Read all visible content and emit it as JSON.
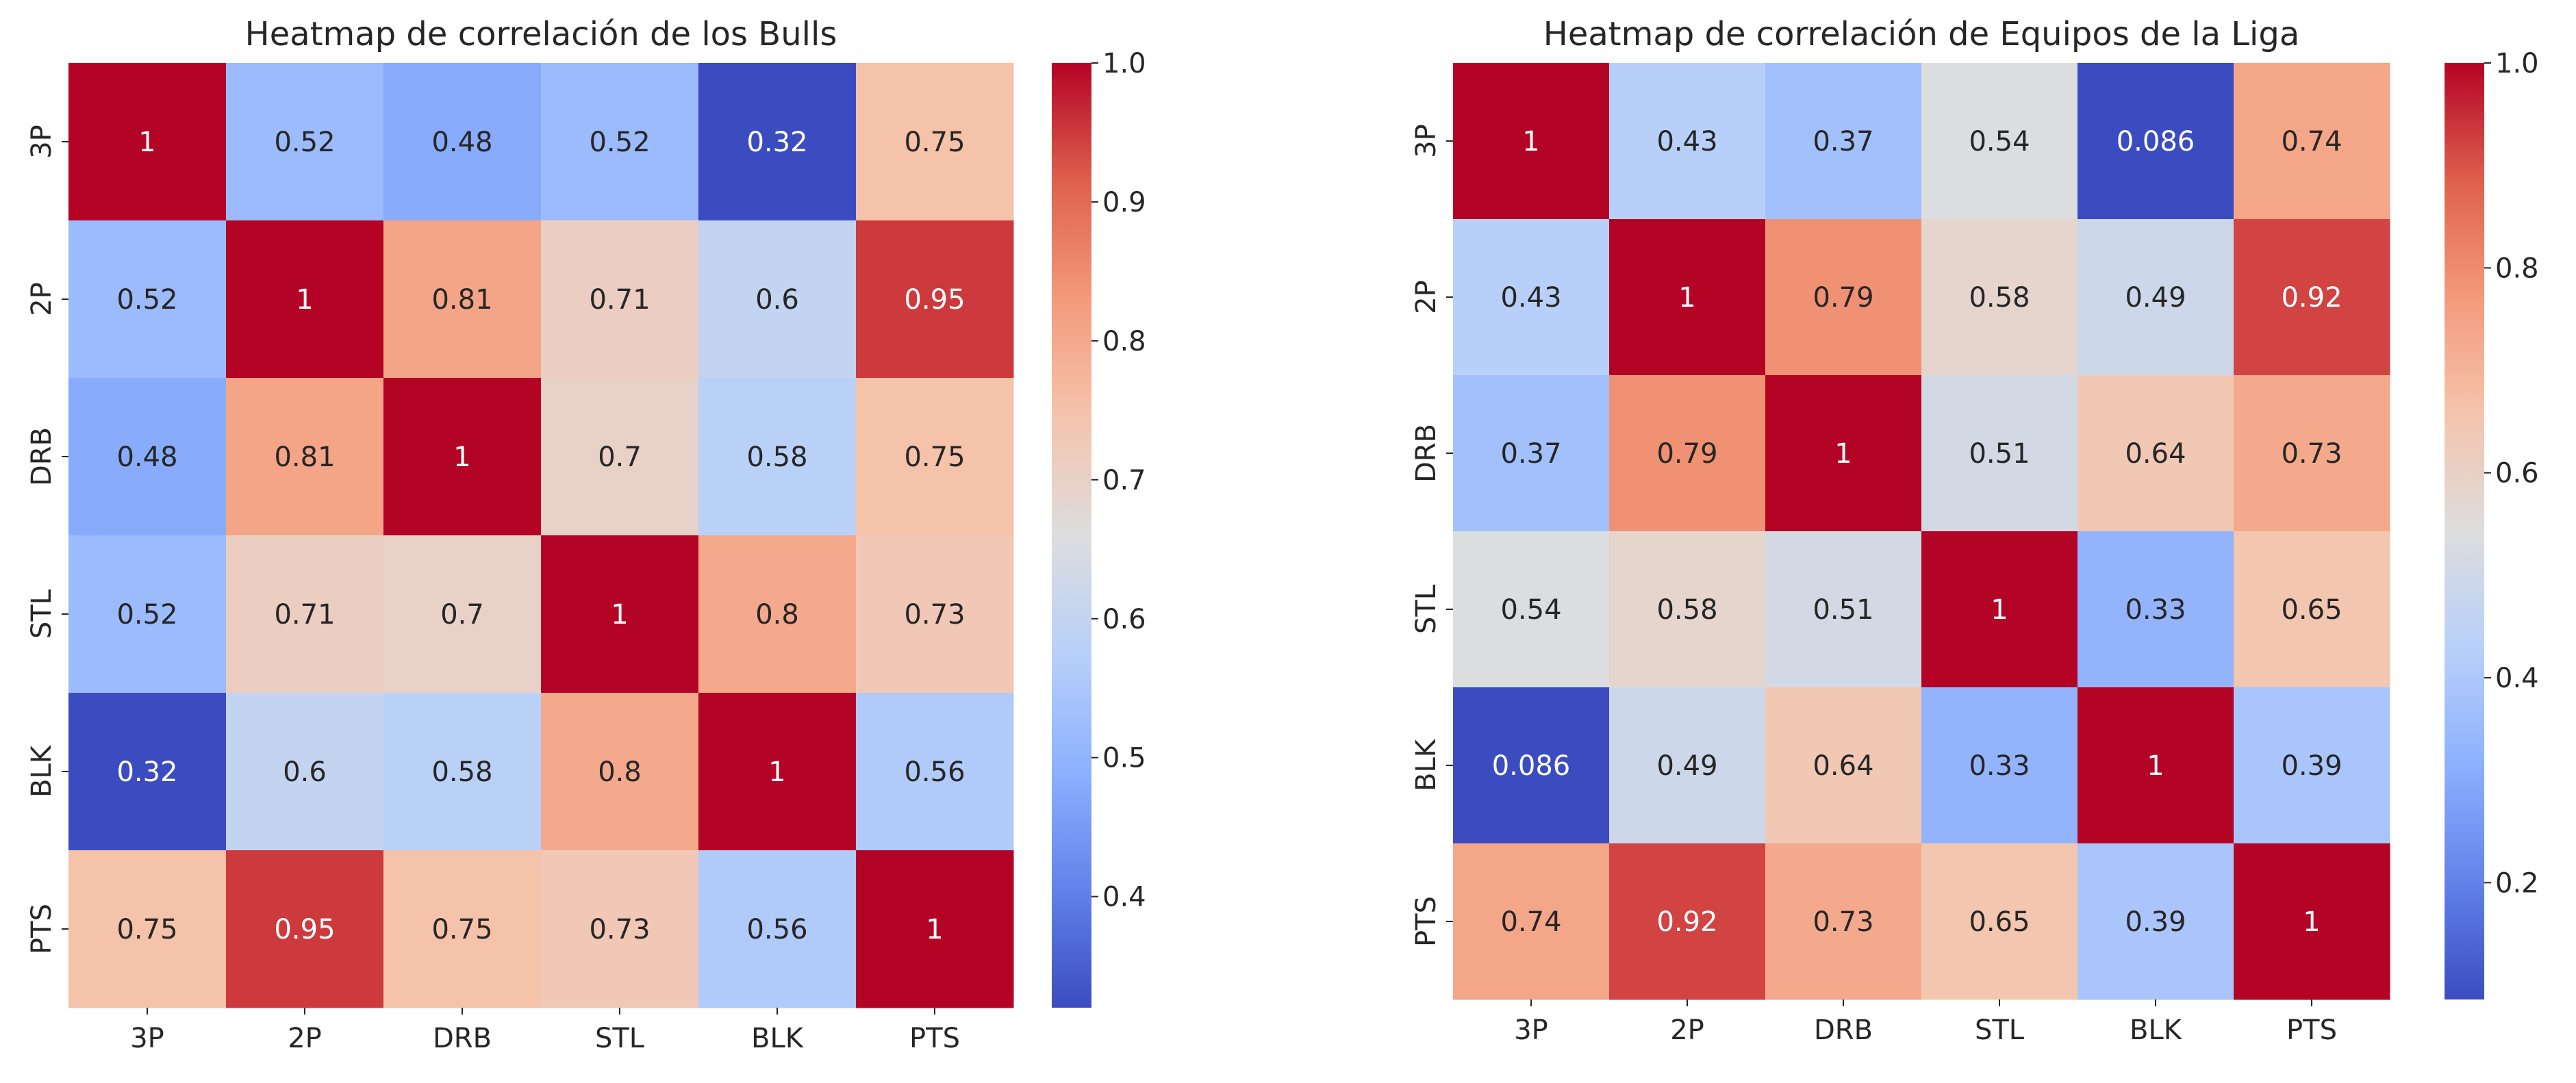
{
  "chart_data": [
    {
      "type": "heatmap",
      "title": "Heatmap de correlación de los Bulls",
      "xlabel": "",
      "ylabel": "",
      "x_categories": [
        "3P",
        "2P",
        "DRB",
        "STL",
        "BLK",
        "PTS"
      ],
      "y_categories": [
        "3P",
        "2P",
        "DRB",
        "STL",
        "BLK",
        "PTS"
      ],
      "values": [
        [
          1,
          0.52,
          0.48,
          0.52,
          0.32,
          0.75
        ],
        [
          0.52,
          1,
          0.81,
          0.71,
          0.6,
          0.95
        ],
        [
          0.48,
          0.81,
          1,
          0.7,
          0.58,
          0.75
        ],
        [
          0.52,
          0.71,
          0.7,
          1,
          0.8,
          0.73
        ],
        [
          0.32,
          0.6,
          0.58,
          0.8,
          1,
          0.56
        ],
        [
          0.75,
          0.95,
          0.75,
          0.73,
          0.56,
          1
        ]
      ],
      "annotation_labels": [
        [
          "1",
          "0.52",
          "0.48",
          "0.52",
          "0.32",
          "0.75"
        ],
        [
          "0.52",
          "1",
          "0.81",
          "0.71",
          "0.6",
          "0.95"
        ],
        [
          "0.48",
          "0.81",
          "1",
          "0.7",
          "0.58",
          "0.75"
        ],
        [
          "0.52",
          "0.71",
          "0.7",
          "1",
          "0.8",
          "0.73"
        ],
        [
          "0.32",
          "0.6",
          "0.58",
          "0.8",
          "1",
          "0.56"
        ],
        [
          "0.75",
          "0.95",
          "0.75",
          "0.73",
          "0.56",
          "1"
        ]
      ],
      "colormap": "coolwarm",
      "colorbar": {
        "range": [
          0.32,
          1.0
        ],
        "ticks": [
          0.4,
          0.5,
          0.6,
          0.7,
          0.8,
          0.9,
          1.0
        ],
        "tick_labels": [
          "0.4",
          "0.5",
          "0.6",
          "0.7",
          "0.8",
          "0.9",
          "1.0"
        ]
      }
    },
    {
      "type": "heatmap",
      "title": "Heatmap de correlación de Equipos de la Liga",
      "xlabel": "",
      "ylabel": "",
      "x_categories": [
        "3P",
        "2P",
        "DRB",
        "STL",
        "BLK",
        "PTS"
      ],
      "y_categories": [
        "3P",
        "2P",
        "DRB",
        "STL",
        "BLK",
        "PTS"
      ],
      "values": [
        [
          1,
          0.43,
          0.37,
          0.54,
          0.086,
          0.74
        ],
        [
          0.43,
          1,
          0.79,
          0.58,
          0.49,
          0.92
        ],
        [
          0.37,
          0.79,
          1,
          0.51,
          0.64,
          0.73
        ],
        [
          0.54,
          0.58,
          0.51,
          1,
          0.33,
          0.65
        ],
        [
          0.086,
          0.49,
          0.64,
          0.33,
          1,
          0.39
        ],
        [
          0.74,
          0.92,
          0.73,
          0.65,
          0.39,
          1
        ]
      ],
      "annotation_labels": [
        [
          "1",
          "0.43",
          "0.37",
          "0.54",
          "0.086",
          "0.74"
        ],
        [
          "0.43",
          "1",
          "0.79",
          "0.58",
          "0.49",
          "0.92"
        ],
        [
          "0.37",
          "0.79",
          "1",
          "0.51",
          "0.64",
          "0.73"
        ],
        [
          "0.54",
          "0.58",
          "0.51",
          "1",
          "0.33",
          "0.65"
        ],
        [
          "0.086",
          "0.49",
          "0.64",
          "0.33",
          "1",
          "0.39"
        ],
        [
          "0.74",
          "0.92",
          "0.73",
          "0.65",
          "0.39",
          "1"
        ]
      ],
      "colormap": "coolwarm",
      "colorbar": {
        "range": [
          0.086,
          1.0
        ],
        "ticks": [
          0.2,
          0.4,
          0.6,
          0.8,
          1.0
        ],
        "tick_labels": [
          "0.2",
          "0.4",
          "0.6",
          "0.8",
          "1.0"
        ]
      }
    }
  ]
}
